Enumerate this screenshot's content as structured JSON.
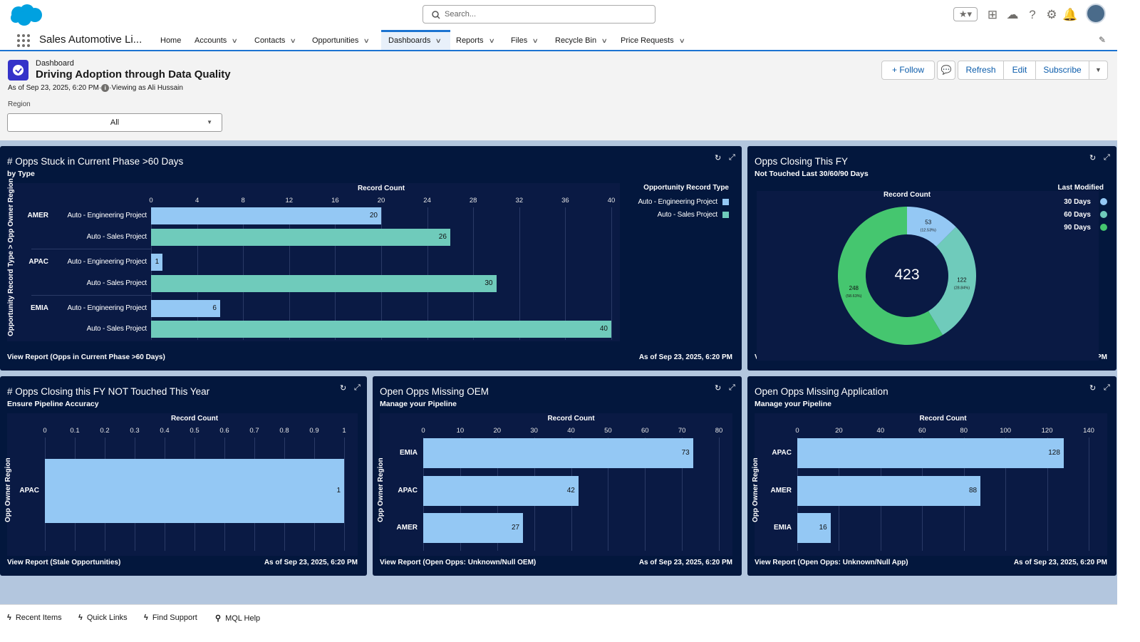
{
  "app": {
    "name": "Sales Automotive Li...",
    "search_placeholder": "Search..."
  },
  "nav": [
    {
      "label": "Home",
      "chev": false
    },
    {
      "label": "Accounts",
      "chev": true
    },
    {
      "label": "Contacts",
      "chev": true
    },
    {
      "label": "Opportunities",
      "chev": true
    },
    {
      "label": "Dashboards",
      "chev": true,
      "active": true
    },
    {
      "label": "Reports",
      "chev": true
    },
    {
      "label": "Files",
      "chev": true
    },
    {
      "label": "Recycle Bin",
      "chev": true
    },
    {
      "label": "Price Requests",
      "chev": true
    }
  ],
  "header": {
    "kicker": "Dashboard",
    "title": "Driving Adoption through Data Quality",
    "as_of": "As of Sep 23, 2025, 6:20 PM·",
    "viewing": "·Viewing as Ali Hussain",
    "filter_label": "Region",
    "filter_value": "All",
    "buttons": {
      "follow": "+ Follow",
      "refresh": "Refresh",
      "edit": "Edit",
      "subscribe": "Subscribe"
    }
  },
  "footer": [
    {
      "icon": "bolt-icon",
      "label": "Recent Items"
    },
    {
      "icon": "bolt-icon",
      "label": "Quick Links"
    },
    {
      "icon": "bolt-icon",
      "label": "Find Support"
    },
    {
      "icon": "search-icon",
      "label": "MQL Help"
    }
  ],
  "colors": {
    "engineering": "#94c8f4",
    "sales": "#6fcbbb",
    "d30": "#94c8f4",
    "d60": "#6fcbbb",
    "d90": "#45c66f",
    "panel": "#03173d",
    "accent": "#1b73d1"
  },
  "chart_data": [
    {
      "type": "bar",
      "title": "# Opps Stuck in Current Phase >60 Days",
      "subtitle": "by Type",
      "xlabel": "Record Count",
      "ylabel": "Opportunity Record Type > Opp Owner Region",
      "xlim": [
        0,
        40
      ],
      "xticks": [
        "0",
        "4",
        "8",
        "12",
        "16",
        "20",
        "24",
        "28",
        "32",
        "36",
        "40"
      ],
      "legend_title": "Opportunity Record Type",
      "legend": [
        "Auto - Engineering Project",
        "Auto - Sales Project"
      ],
      "groups": [
        {
          "region": "AMER",
          "rows": [
            {
              "type": "Auto - Engineering Project",
              "value": 20
            },
            {
              "type": "Auto - Sales Project",
              "value": 26
            }
          ]
        },
        {
          "region": "APAC",
          "rows": [
            {
              "type": "Auto - Engineering Project",
              "value": 1
            },
            {
              "type": "Auto - Sales Project",
              "value": 30
            }
          ]
        },
        {
          "region": "EMIA",
          "rows": [
            {
              "type": "Auto - Engineering Project",
              "value": 6
            },
            {
              "type": "Auto - Sales Project",
              "value": 40
            }
          ]
        }
      ],
      "footer_link": "View Report (Opps in Current Phase >60 Days)",
      "as_of": "As of Sep 23, 2025, 6:20 PM"
    },
    {
      "type": "pie",
      "title": "Opps Closing This FY",
      "subtitle": "Not Touched Last 30/60/90 Days",
      "label": "Record Count",
      "total": "423",
      "legend_title": "Last Modified",
      "slices": [
        {
          "name": "30 Days",
          "value": 53,
          "pct": "(12.53%)"
        },
        {
          "name": "60 Days",
          "value": 122,
          "pct": "(28.84%)"
        },
        {
          "name": "90 Days",
          "value": 248,
          "pct": "(58.63%)"
        }
      ],
      "footer_link": "View Report (Untouched Opps)",
      "as_of": "As of Sep 23, 2025, 6:20 PM"
    },
    {
      "type": "bar",
      "title": "# Opps Closing this FY NOT Touched This Year",
      "subtitle": "Ensure Pipeline Accuracy",
      "xlabel": "Record Count",
      "ylabel": "Opp Owner Region",
      "xlim": [
        0,
        1
      ],
      "xticks": [
        "0",
        "0.1",
        "0.2",
        "0.3",
        "0.4",
        "0.5",
        "0.6",
        "0.7",
        "0.8",
        "0.9",
        "1"
      ],
      "categories": [
        "APAC"
      ],
      "values": [
        1
      ],
      "footer_link": "View Report (Stale Opportunities)",
      "as_of": "As of Sep 23, 2025, 6:20 PM"
    },
    {
      "type": "bar",
      "title": "Open Opps Missing OEM",
      "subtitle": "Manage your Pipeline",
      "xlabel": "Record Count",
      "ylabel": "Opp Owner Region",
      "xlim": [
        0,
        80
      ],
      "xticks": [
        "0",
        "10",
        "20",
        "30",
        "40",
        "50",
        "60",
        "70",
        "80"
      ],
      "categories": [
        "EMIA",
        "APAC",
        "AMER"
      ],
      "values": [
        73,
        42,
        27
      ],
      "footer_link": "View Report (Open Opps: Unknown/Null OEM)",
      "as_of": "As of Sep 23, 2025, 6:20 PM"
    },
    {
      "type": "bar",
      "title": "Open Opps Missing Application",
      "subtitle": "Manage your Pipeline",
      "xlabel": "Record Count",
      "ylabel": "Opp Owner Region",
      "xlim": [
        0,
        140
      ],
      "xticks": [
        "0",
        "20",
        "40",
        "60",
        "80",
        "100",
        "120",
        "140"
      ],
      "categories": [
        "APAC",
        "AMER",
        "EMIA"
      ],
      "values": [
        128,
        88,
        16
      ],
      "footer_link": "View Report (Open Opps: Unknown/Null App)",
      "as_of": "As of Sep 23, 2025, 6:20 PM"
    }
  ]
}
